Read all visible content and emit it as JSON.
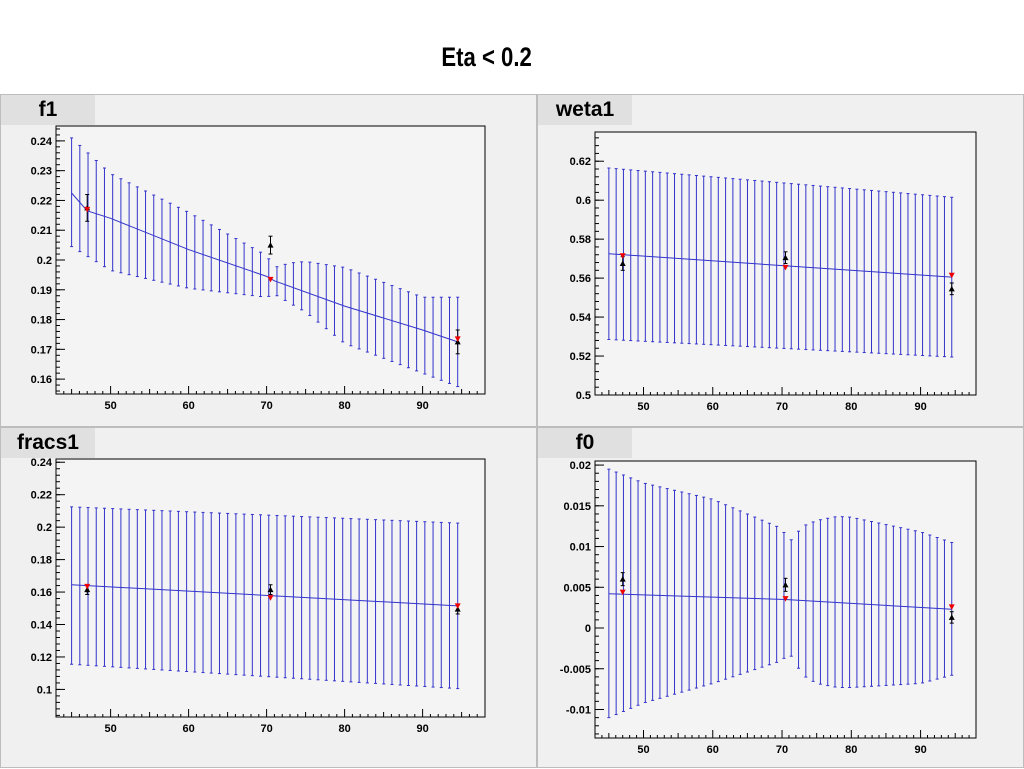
{
  "page_title": "Eta < 0.2",
  "colors": {
    "band": "#3333cc",
    "fit_line": "#3333cc",
    "marker_black": "#000000",
    "marker_red": "#ee0000",
    "panel_bg": "#f0f0f0",
    "frame_bg": "#f4f4f4"
  },
  "chart_data": [
    {
      "title": "f1",
      "type": "line",
      "xlim": [
        43,
        98
      ],
      "ylim": [
        0.155,
        0.245
      ],
      "xticks": [
        50,
        60,
        70,
        80,
        90
      ],
      "xtick_labels": [
        "50",
        "60",
        "70",
        "80",
        "90"
      ],
      "yticks": [
        0.16,
        0.17,
        0.18,
        0.19,
        0.2,
        0.21,
        0.22,
        0.23,
        0.24
      ],
      "ytick_labels": [
        "0.16",
        "0.17",
        "0.18",
        "0.19",
        "0.2",
        "0.21",
        "0.22",
        "0.23",
        "0.24"
      ],
      "band_x_range": [
        45,
        94.5
      ],
      "band_points": 48,
      "fit": {
        "x": [
          45,
          47,
          50,
          60,
          70,
          71,
          80,
          90,
          94.5
        ],
        "y": [
          0.2225,
          0.2165,
          0.214,
          0.2035,
          0.1945,
          0.193,
          0.1845,
          0.1765,
          0.1725
        ]
      },
      "upper": {
        "x": [
          45,
          50,
          60,
          70,
          71,
          73,
          75,
          80,
          90,
          94.5
        ],
        "y": [
          0.241,
          0.229,
          0.216,
          0.2015,
          0.1975,
          0.199,
          0.1995,
          0.1975,
          0.1875,
          0.1875
        ]
      },
      "lower": {
        "x": [
          45,
          50,
          60,
          70,
          71,
          75,
          80,
          90,
          94.5
        ],
        "y": [
          0.2045,
          0.1965,
          0.1905,
          0.1875,
          0.1885,
          0.1825,
          0.172,
          0.162,
          0.1575
        ]
      },
      "black_points": [
        {
          "x": 47,
          "y": 0.2175,
          "err": 0.0045
        },
        {
          "x": 70.5,
          "y": 0.205,
          "err": 0.003
        },
        {
          "x": 94.5,
          "y": 0.1725,
          "err": 0.004
        }
      ],
      "red_points": [
        {
          "x": 47,
          "y": 0.217
        },
        {
          "x": 70.5,
          "y": 0.1935
        },
        {
          "x": 94.5,
          "y": 0.1735
        }
      ]
    },
    {
      "title": "weta1",
      "type": "line",
      "xlim": [
        43,
        98
      ],
      "ylim": [
        0.5,
        0.635
      ],
      "xticks": [
        50,
        60,
        70,
        80,
        90
      ],
      "xtick_labels": [
        "50",
        "60",
        "70",
        "80",
        "90"
      ],
      "yticks": [
        0.5,
        0.52,
        0.54,
        0.56,
        0.58,
        0.6,
        0.62
      ],
      "ytick_labels": [
        "0.5",
        "0.52",
        "0.54",
        "0.56",
        "0.58",
        "0.6",
        "0.62"
      ],
      "band_x_range": [
        45,
        94.5
      ],
      "band_points": 48,
      "fit": {
        "x": [
          45,
          94.5
        ],
        "y": [
          0.5725,
          0.5605
        ]
      },
      "upper": {
        "x": [
          45,
          94.5
        ],
        "y": [
          0.6165,
          0.6015
        ]
      },
      "lower": {
        "x": [
          45,
          94.5
        ],
        "y": [
          0.5285,
          0.5195
        ]
      },
      "black_points": [
        {
          "x": 47,
          "y": 0.5675,
          "err": 0.0035
        },
        {
          "x": 70.5,
          "y": 0.5705,
          "err": 0.003
        },
        {
          "x": 94.5,
          "y": 0.5545,
          "err": 0.003
        }
      ],
      "red_points": [
        {
          "x": 47,
          "y": 0.5715
        },
        {
          "x": 70.5,
          "y": 0.5655
        },
        {
          "x": 94.5,
          "y": 0.5615
        }
      ]
    },
    {
      "title": "fracs1",
      "type": "line",
      "xlim": [
        43,
        98
      ],
      "ylim": [
        0.083,
        0.242
      ],
      "xticks": [
        50,
        60,
        70,
        80,
        90
      ],
      "xtick_labels": [
        "50",
        "60",
        "70",
        "80",
        "90"
      ],
      "yticks": [
        0.1,
        0.12,
        0.14,
        0.16,
        0.18,
        0.2,
        0.22,
        0.24
      ],
      "ytick_labels": [
        "0.1",
        "0.12",
        "0.14",
        "0.16",
        "0.18",
        "0.2",
        "0.22",
        "0.24"
      ],
      "band_x_range": [
        45,
        94.5
      ],
      "band_points": 48,
      "fit": {
        "x": [
          45,
          94.5
        ],
        "y": [
          0.1645,
          0.1515
        ]
      },
      "upper": {
        "x": [
          45,
          94.5
        ],
        "y": [
          0.2125,
          0.2025
        ]
      },
      "lower": {
        "x": [
          45,
          94.5
        ],
        "y": [
          0.1155,
          0.1005
        ]
      },
      "black_points": [
        {
          "x": 47,
          "y": 0.1615,
          "err": 0.003
        },
        {
          "x": 70.5,
          "y": 0.1615,
          "err": 0.003
        },
        {
          "x": 94.5,
          "y": 0.1495,
          "err": 0.003
        }
      ],
      "red_points": [
        {
          "x": 47,
          "y": 0.1635
        },
        {
          "x": 70.5,
          "y": 0.1565
        },
        {
          "x": 94.5,
          "y": 0.1515
        }
      ]
    },
    {
      "title": "f0",
      "type": "line",
      "xlim": [
        43,
        98
      ],
      "ylim": [
        -0.0135,
        0.0205
      ],
      "xticks": [
        50,
        60,
        70,
        80,
        90
      ],
      "xtick_labels": [
        "50",
        "60",
        "70",
        "80",
        "90"
      ],
      "yticks": [
        -0.01,
        -0.005,
        0,
        0.005,
        0.01,
        0.015,
        0.02
      ],
      "ytick_labels": [
        "-0.01",
        "-0.005",
        "0",
        "0.005",
        "0.01",
        "0.015",
        "0.02"
      ],
      "band_x_range": [
        45,
        94.5
      ],
      "band_points": 48,
      "fit": {
        "x": [
          45,
          70.5,
          94.5
        ],
        "y": [
          0.0042,
          0.0035,
          0.0023
        ]
      },
      "upper": {
        "x": [
          45,
          50,
          60,
          70,
          71,
          73,
          75,
          78,
          80,
          90,
          94.5
        ],
        "y": [
          0.0195,
          0.0178,
          0.0158,
          0.0122,
          0.0105,
          0.0125,
          0.0132,
          0.0137,
          0.0136,
          0.0118,
          0.0105
        ]
      },
      "lower": {
        "x": [
          45,
          50,
          60,
          70,
          71,
          73,
          75,
          78,
          80,
          90,
          94.5
        ],
        "y": [
          -0.011,
          -0.0092,
          -0.0068,
          -0.004,
          -0.003,
          -0.0058,
          -0.0068,
          -0.0073,
          -0.0073,
          -0.0068,
          -0.0058
        ]
      },
      "black_points": [
        {
          "x": 47,
          "y": 0.006,
          "err": 0.0008
        },
        {
          "x": 70.5,
          "y": 0.0053,
          "err": 0.0008
        },
        {
          "x": 94.5,
          "y": 0.0013,
          "err": 0.0007
        }
      ],
      "red_points": [
        {
          "x": 47,
          "y": 0.0044
        },
        {
          "x": 70.5,
          "y": 0.0036
        },
        {
          "x": 94.5,
          "y": 0.0026
        }
      ]
    }
  ]
}
